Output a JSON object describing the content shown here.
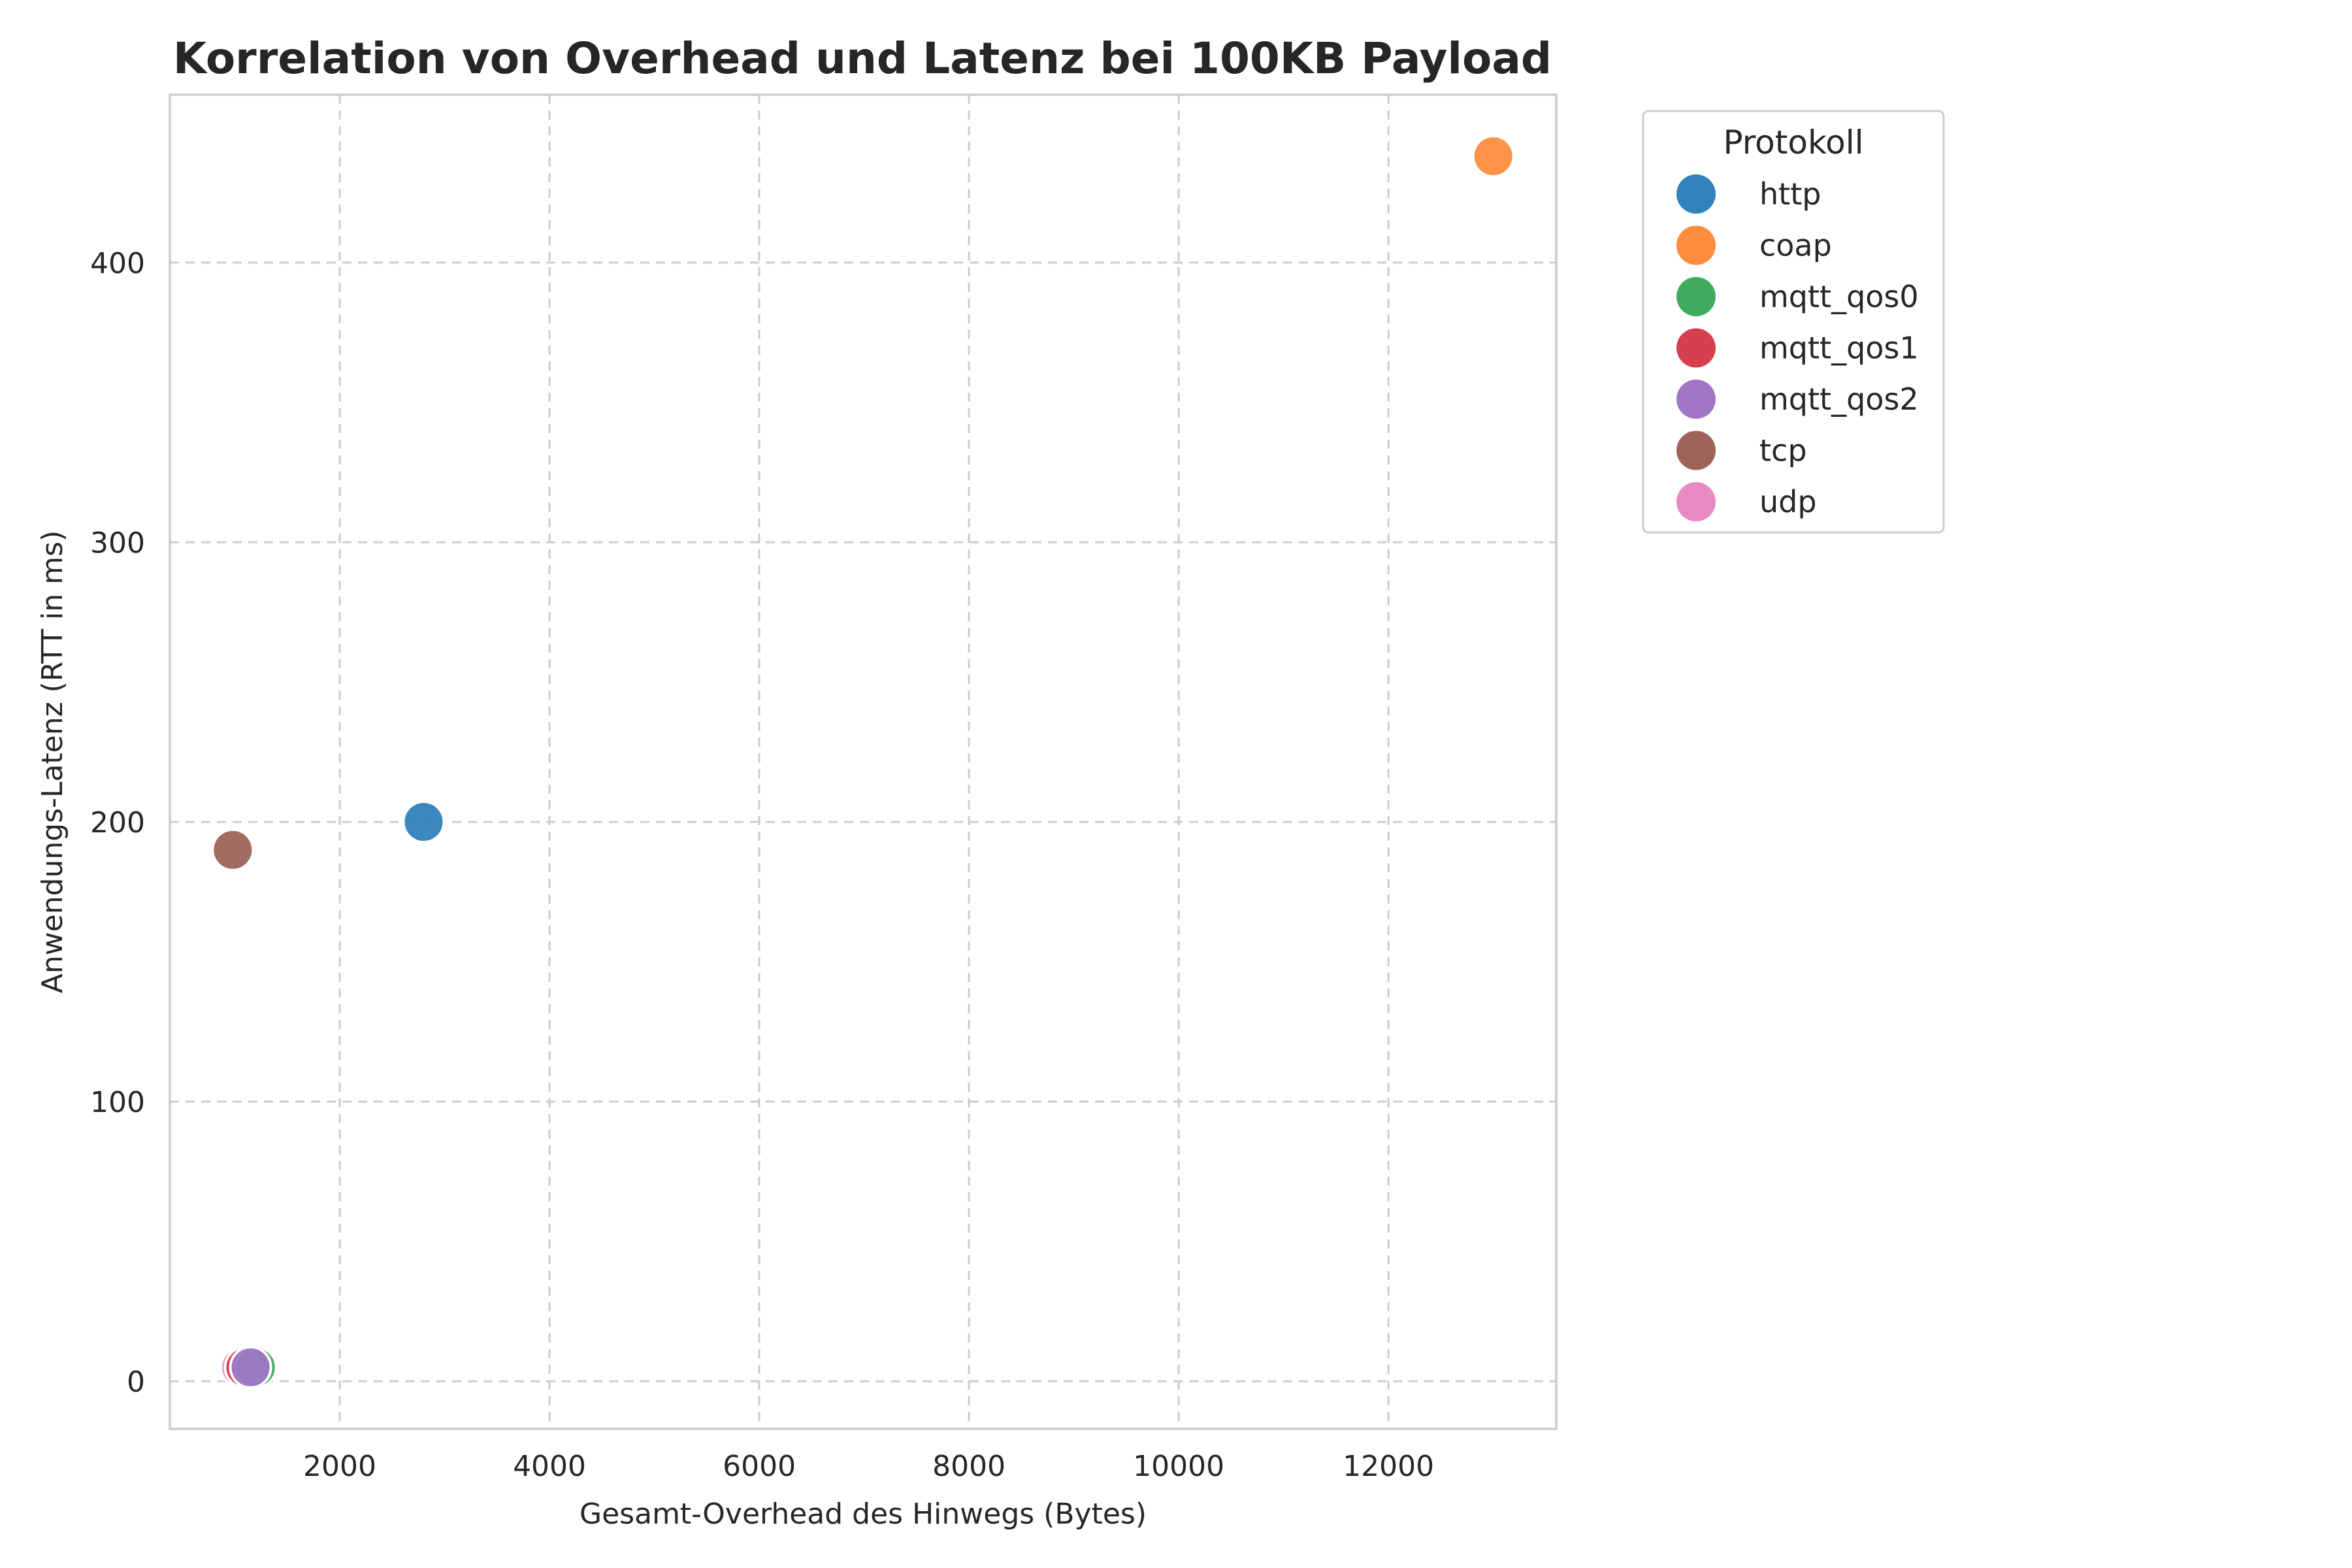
{
  "chart_data": {
    "type": "scatter",
    "title": "Korrelation von Overhead und Latenz bei 100KB Payload",
    "xlabel": "Gesamt-Overhead des Hinwegs (Bytes)",
    "ylabel": "Anwendungs-Latenz (RTT in ms)",
    "xlim": [
      380,
      13600
    ],
    "ylim": [
      -17,
      460
    ],
    "xticks": [
      2000,
      4000,
      6000,
      8000,
      10000,
      12000
    ],
    "yticks": [
      0,
      100,
      200,
      300,
      400
    ],
    "grid": true,
    "legend": {
      "title": "Protokoll",
      "placement": "outside-right"
    },
    "series": [
      {
        "name": "http",
        "color": "#3182bd",
        "x": [
          2800
        ],
        "y": [
          200
        ]
      },
      {
        "name": "coap",
        "color": "#fd8d3c",
        "x": [
          13000
        ],
        "y": [
          438
        ]
      },
      {
        "name": "mqtt_qos0",
        "color": "#41ab5d",
        "x": [
          1200
        ],
        "y": [
          5
        ]
      },
      {
        "name": "mqtt_qos1",
        "color": "#d6404e",
        "x": [
          1100
        ],
        "y": [
          5
        ]
      },
      {
        "name": "mqtt_qos2",
        "color": "#9e76c4",
        "x": [
          1150
        ],
        "y": [
          5
        ]
      },
      {
        "name": "tcp",
        "color": "#9c6458",
        "x": [
          980
        ],
        "y": [
          190
        ]
      },
      {
        "name": "udp",
        "color": "#e78ac3",
        "x": [
          1060
        ],
        "y": [
          5
        ]
      }
    ]
  }
}
